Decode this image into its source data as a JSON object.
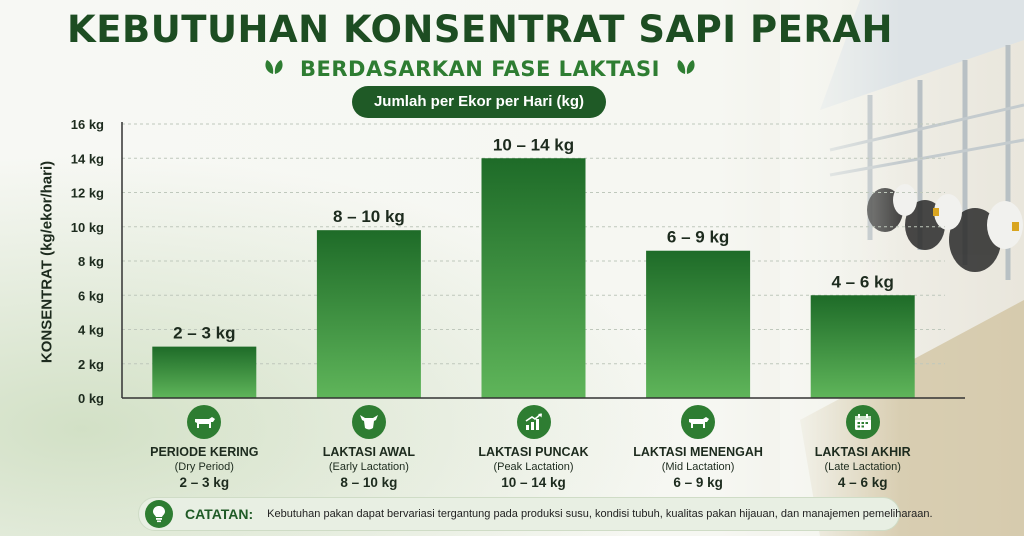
{
  "title": "KEBUTUHAN KONSENTRAT SAPI PERAH",
  "subtitle": "BERDASARKAN FASE LAKTASI",
  "unit_pill": "Jumlah per Ekor per Hari (kg)",
  "colors": {
    "bar_top": "#1e6b28",
    "bar_bottom": "#5fb55a",
    "dark_green": "#1d4d22",
    "accent_green": "#2e7d32"
  },
  "chart_data": {
    "type": "bar",
    "ylabel": "KONSENTRAT (kg/ekor/hari)",
    "ylim": [
      0,
      16
    ],
    "yticks": [
      0,
      2,
      4,
      6,
      8,
      10,
      12,
      14,
      16
    ],
    "ytick_labels": [
      "0 kg",
      "2 kg",
      "4 kg",
      "6 kg",
      "8 kg",
      "10 kg",
      "12 kg",
      "14 kg",
      "16 kg"
    ],
    "grid": true,
    "categories": [
      "PERIODE KERING",
      "LAKTASI AWAL",
      "LAKTASI PUNCAK",
      "LAKTASI MENENGAH",
      "LAKTASI AKHIR"
    ],
    "values": [
      3,
      9.8,
      14,
      8.6,
      6
    ],
    "data_labels": [
      "2 – 3 kg",
      "8 – 10 kg",
      "10 – 14 kg",
      "6 – 9 kg",
      "4 – 6 kg"
    ]
  },
  "categories_detail": [
    {
      "name": "PERIODE KERING",
      "en": "(Dry Period)",
      "range": "2 – 3 kg",
      "icon": "cow-icon"
    },
    {
      "name": "LAKTASI AWAL",
      "en": "(Early Lactation)",
      "range": "8 – 10 kg",
      "icon": "cow-head-icon"
    },
    {
      "name": "LAKTASI PUNCAK",
      "en": "(Peak Lactation)",
      "range": "10 – 14 kg",
      "icon": "growth-chart-icon"
    },
    {
      "name": "LAKTASI MENENGAH",
      "en": "(Mid Lactation)",
      "range": "6 – 9 kg",
      "icon": "cow-icon"
    },
    {
      "name": "LAKTASI AKHIR",
      "en": "(Late Lactation)",
      "range": "4 – 6 kg",
      "icon": "calendar-icon"
    }
  ],
  "note": {
    "label": "CATATAN:",
    "text": "Kebutuhan pakan dapat bervariasi tergantung pada produksi susu, kondisi tubuh, kualitas pakan hijauan, dan manajemen pemeliharaan."
  }
}
